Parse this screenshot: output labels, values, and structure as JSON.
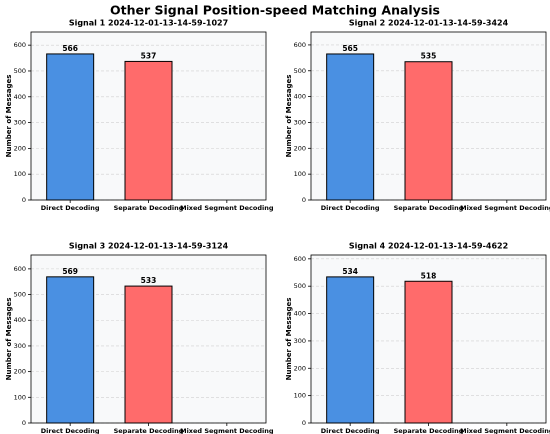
{
  "title": "Other Signal Position-speed Matching Analysis",
  "chart_data": [
    {
      "type": "bar",
      "title": "Signal 1 2024-12-01-13-14-59-1027",
      "ylabel": "Number of Messages",
      "categories": [
        "Direct Decoding",
        "Separate Decoding",
        "Mixed Segment Decoding"
      ],
      "values": [
        566,
        537,
        0
      ],
      "colors": [
        "#4a90e2",
        "#ff6b6b",
        "#50c878"
      ],
      "ylim": [
        0,
        651
      ],
      "yticks": [
        0,
        100,
        200,
        300,
        400,
        500,
        600
      ],
      "grid": true
    },
    {
      "type": "bar",
      "title": "Signal 2 2024-12-01-13-14-59-3424",
      "ylabel": "Number of Messages",
      "categories": [
        "Direct Decoding",
        "Separate Decoding",
        "Mixed Segment Decoding"
      ],
      "values": [
        565,
        535,
        0
      ],
      "colors": [
        "#4a90e2",
        "#ff6b6b",
        "#50c878"
      ],
      "ylim": [
        0,
        650
      ],
      "yticks": [
        0,
        100,
        200,
        300,
        400,
        500,
        600
      ],
      "grid": true
    },
    {
      "type": "bar",
      "title": "Signal 3 2024-12-01-13-14-59-3124",
      "ylabel": "Number of Messages",
      "categories": [
        "Direct Decoding",
        "Separate Decoding",
        "Mixed Segment Decoding"
      ],
      "values": [
        569,
        533,
        0
      ],
      "colors": [
        "#4a90e2",
        "#ff6b6b",
        "#50c878"
      ],
      "ylim": [
        0,
        654
      ],
      "yticks": [
        0,
        100,
        200,
        300,
        400,
        500,
        600
      ],
      "grid": true
    },
    {
      "type": "bar",
      "title": "Signal 4 2024-12-01-13-14-59-4622",
      "ylabel": "Number of Messages",
      "categories": [
        "Direct Decoding",
        "Separate Decoding",
        "Mixed Segment Decoding"
      ],
      "values": [
        534,
        518,
        0
      ],
      "colors": [
        "#4a90e2",
        "#ff6b6b",
        "#50c878"
      ],
      "ylim": [
        0,
        614
      ],
      "yticks": [
        0,
        100,
        200,
        300,
        400,
        500,
        600
      ],
      "grid": true
    }
  ]
}
